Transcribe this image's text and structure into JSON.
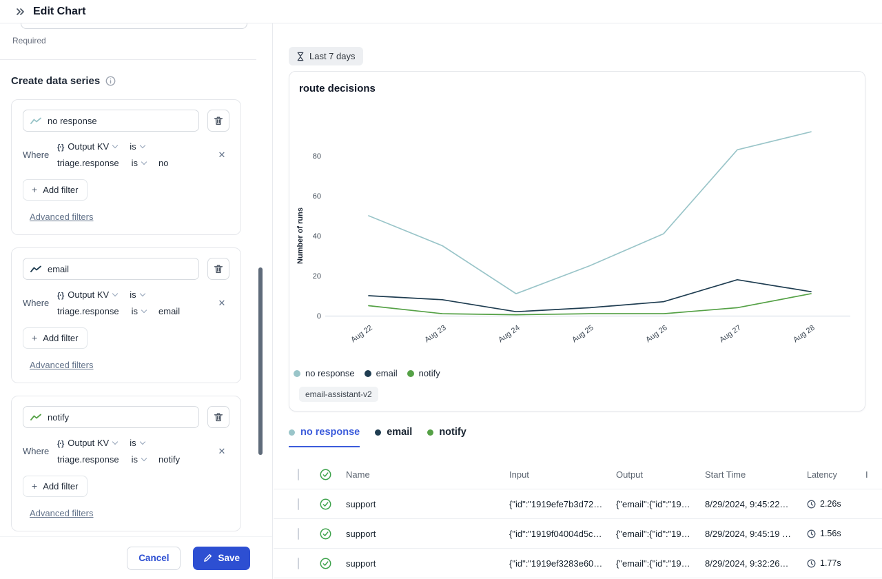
{
  "window": {
    "title": "Edit Chart"
  },
  "sidebar": {
    "required_label": "Required",
    "section": {
      "title": "Create data series"
    },
    "cards": [
      {
        "name": "no response",
        "color": "#9ac5c9",
        "where_label": "Where",
        "field_dropdown": "Output KV",
        "operator_dropdown": "is",
        "key_path": "triage.response",
        "key_operator": "is",
        "value": "no",
        "add_filter_label": "Add filter",
        "advanced_filters_label": "Advanced filters"
      },
      {
        "name": "email",
        "color": "#1f3d51",
        "where_label": "Where",
        "field_dropdown": "Output KV",
        "operator_dropdown": "is",
        "key_path": "triage.response",
        "key_operator": "is",
        "value": "email",
        "add_filter_label": "Add filter",
        "advanced_filters_label": "Advanced filters"
      },
      {
        "name": "notify",
        "color": "#55a146",
        "where_label": "Where",
        "field_dropdown": "Output KV",
        "operator_dropdown": "is",
        "key_path": "triage.response",
        "key_operator": "is",
        "value": "notify",
        "add_filter_label": "Add filter",
        "advanced_filters_label": "Advanced filters"
      }
    ],
    "footer": {
      "cancel_label": "Cancel",
      "save_label": "Save"
    }
  },
  "main": {
    "time_range_label": "Last 7 days",
    "chart_card": {
      "title": "route decisions",
      "tag": "email-assistant-v2"
    },
    "tabs": [
      {
        "label": "no response",
        "color": "#9ac5c9",
        "active": true
      },
      {
        "label": "email",
        "color": "#1f3d51",
        "active": false
      },
      {
        "label": "notify",
        "color": "#55a146",
        "active": false
      }
    ],
    "table": {
      "columns": {
        "name": "Name",
        "input": "Input",
        "output": "Output",
        "start_time": "Start Time",
        "latency": "Latency",
        "clipped": "I"
      },
      "rows": [
        {
          "name": "support",
          "input": "{\"id\":\"1919efe7b3d72…",
          "output": "{\"email\":{\"id\":\"19…",
          "start_time": "8/29/2024, 9:45:22…",
          "latency": "2.26s"
        },
        {
          "name": "support",
          "input": "{\"id\":\"1919f04004d5c…",
          "output": "{\"email\":{\"id\":\"19…",
          "start_time": "8/29/2024, 9:45:19 …",
          "latency": "1.56s"
        },
        {
          "name": "support",
          "input": "{\"id\":\"1919ef3283e60…",
          "output": "{\"email\":{\"id\":\"19…",
          "start_time": "8/29/2024, 9:32:26…",
          "latency": "1.77s"
        }
      ]
    }
  },
  "chart_data": {
    "type": "line",
    "title": "route decisions",
    "x": [
      "Aug 22",
      "Aug 23",
      "Aug 24",
      "Aug 25",
      "Aug 26",
      "Aug 27",
      "Aug 28"
    ],
    "xlabel": "",
    "ylabel": "Number of runs",
    "ylim": [
      0,
      100
    ],
    "yticks": [
      0,
      20,
      40,
      60,
      80
    ],
    "grid": false,
    "legend_position": "bottom",
    "series": [
      {
        "name": "no response",
        "color": "#9ac5c9",
        "values": [
          50,
          35,
          11,
          25,
          41,
          83,
          92
        ]
      },
      {
        "name": "email",
        "color": "#1f3d51",
        "values": [
          10,
          8,
          2,
          4,
          7,
          18,
          12
        ]
      },
      {
        "name": "notify",
        "color": "#55a146",
        "values": [
          5,
          1,
          0.5,
          1,
          1,
          4,
          11
        ]
      }
    ]
  },
  "colors": {
    "accent_blue": "#2d4fd2",
    "tab_active_blue": "#3b5bdb",
    "success_green": "#3ea34c"
  }
}
